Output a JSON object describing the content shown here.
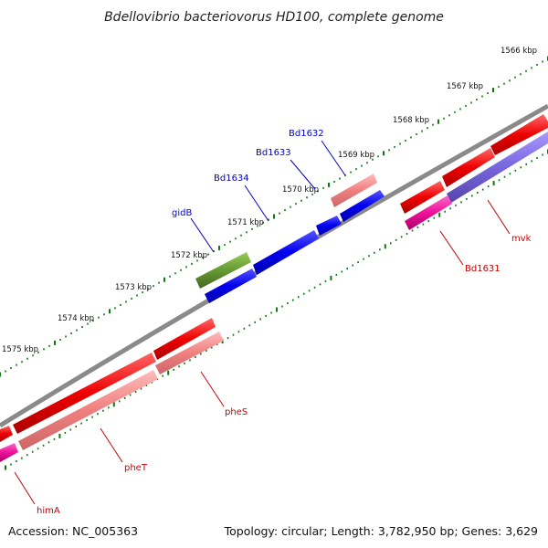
{
  "title": "Bdellovibrio bacteriovorus HD100, complete genome",
  "footer": {
    "accession": "Accession: NC_005363",
    "summary": "Topology: circular; Length: 3,782,950 bp; Genes: 3,629"
  },
  "ticks": [
    "1566 kbp",
    "1567 kbp",
    "1568 kbp",
    "1569 kbp",
    "1570 kbp",
    "1571 kbp",
    "1572 kbp",
    "1573 kbp",
    "1574 kbp",
    "1575 kbp"
  ],
  "genes_upper": [
    {
      "label": "Bd1632",
      "color": "#0000cc"
    },
    {
      "label": "Bd1633",
      "color": "#0000cc"
    },
    {
      "label": "Bd1634",
      "color": "#0000cc"
    },
    {
      "label": "gidB",
      "color": "#0000cc"
    }
  ],
  "genes_lower": [
    {
      "label": "mvk",
      "color": "#cc0000"
    },
    {
      "label": "Bd1631",
      "color": "#cc0000"
    },
    {
      "label": "pheS",
      "color": "#cc0000"
    },
    {
      "label": "pheT",
      "color": "#cc0000"
    },
    {
      "label": "himA",
      "color": "#cc0000"
    }
  ],
  "colors": {
    "backbone": "#777777",
    "forward_cds": "#ff0000",
    "reverse_cds": "#0000ee",
    "pink_feature": "#f08080",
    "magenta_feature": "#ee1199",
    "purple_feature": "#7766dd",
    "olive_feature": "#669933",
    "tick_green": "#117711"
  }
}
